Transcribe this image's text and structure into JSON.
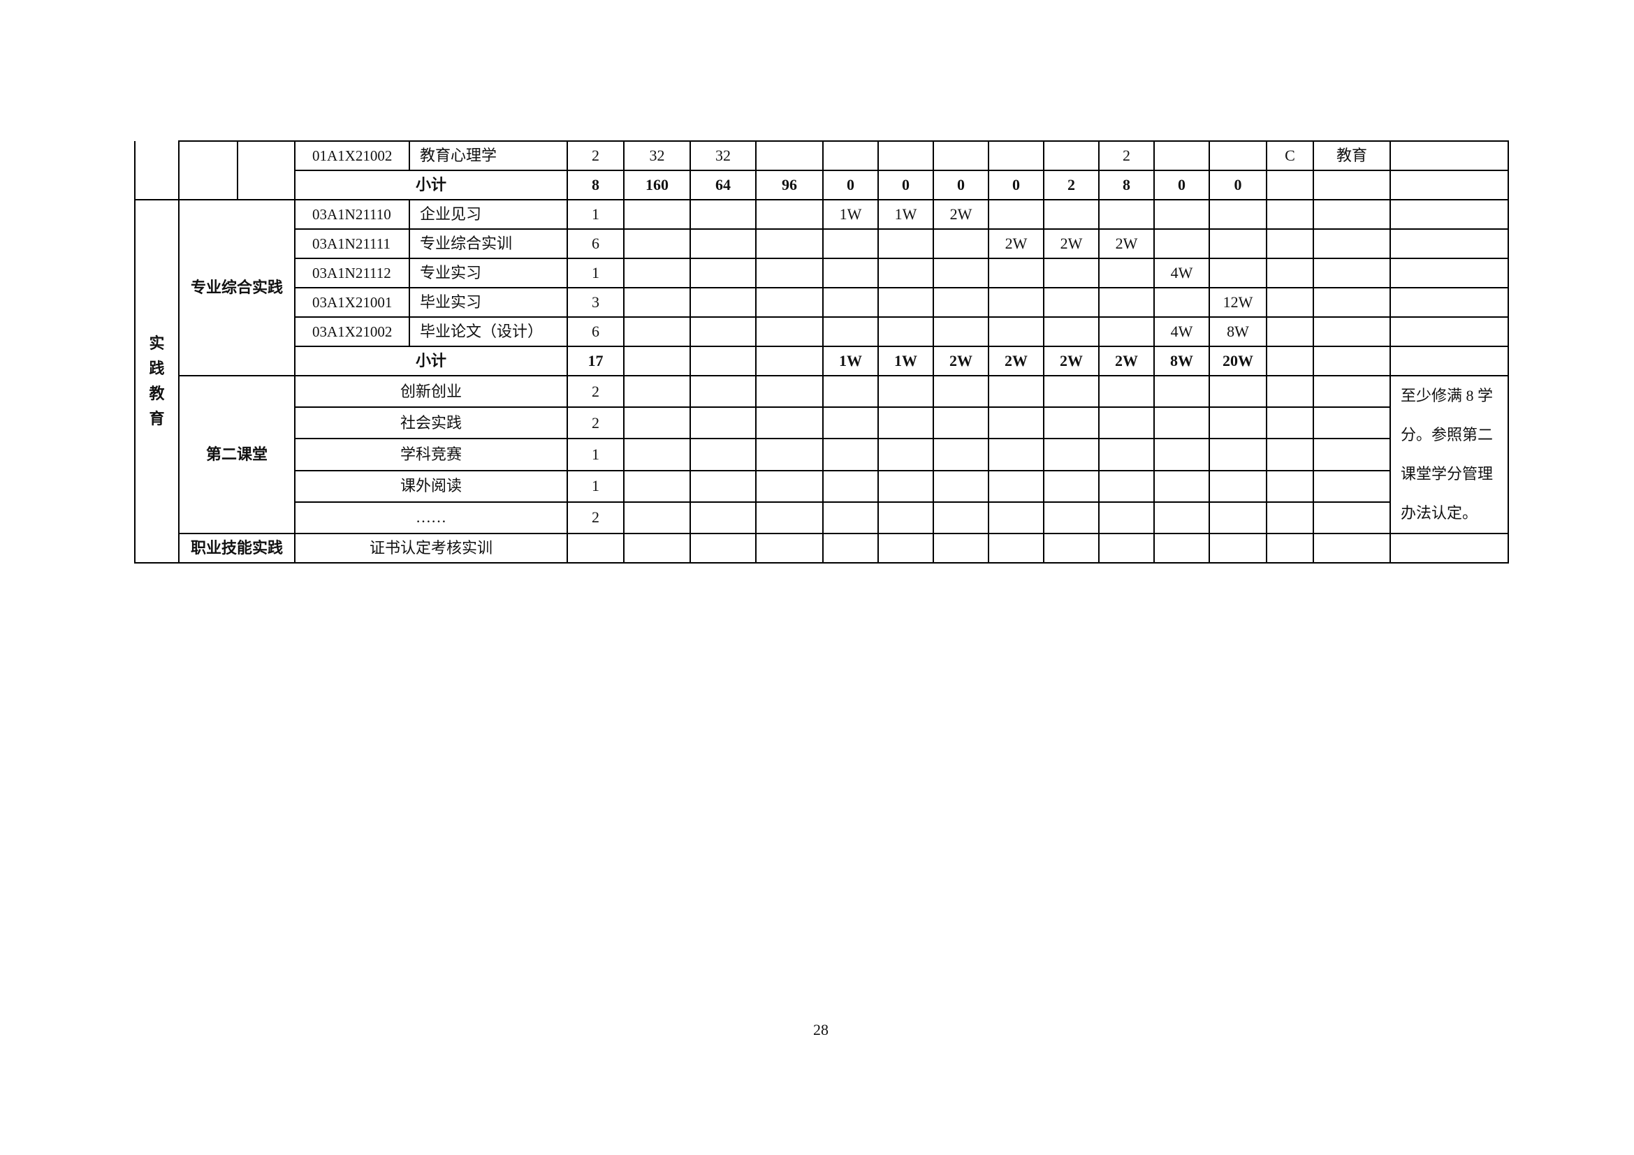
{
  "top_section": {
    "course": {
      "code": "01A1X21002",
      "name": "教育心理学",
      "credits": "2",
      "total_hours": "32",
      "theory_hours": "32",
      "practice_hours": "",
      "semesters": [
        "",
        "",
        "",
        "",
        "",
        "2",
        "",
        ""
      ],
      "assessment": "C",
      "department": "教育",
      "remarks": ""
    },
    "subtotal": {
      "label": "小计",
      "credits": "8",
      "total_hours": "160",
      "theory_hours": "64",
      "practice_hours": "96",
      "semesters": [
        "0",
        "0",
        "0",
        "0",
        "2",
        "8",
        "0",
        "0"
      ]
    }
  },
  "practice_education": {
    "label": "实践教育",
    "professional": {
      "label": "专业综合实践",
      "courses": [
        {
          "code": "03A1N21110",
          "name": "企业见习",
          "credits": "1",
          "semesters": [
            "1W",
            "1W",
            "2W",
            "",
            "",
            "",
            "",
            ""
          ]
        },
        {
          "code": "03A1N21111",
          "name": "专业综合实训",
          "credits": "6",
          "semesters": [
            "",
            "",
            "",
            "2W",
            "2W",
            "2W",
            "",
            ""
          ]
        },
        {
          "code": "03A1N21112",
          "name": "专业实习",
          "credits": "1",
          "semesters": [
            "",
            "",
            "",
            "",
            "",
            "",
            "4W",
            ""
          ]
        },
        {
          "code": "03A1X21001",
          "name": "毕业实习",
          "credits": "3",
          "semesters": [
            "",
            "",
            "",
            "",
            "",
            "",
            "",
            "12W"
          ]
        },
        {
          "code": "03A1X21002",
          "name": "毕业论文（设计）",
          "credits": "6",
          "semesters": [
            "",
            "",
            "",
            "",
            "",
            "",
            "4W",
            "8W"
          ]
        }
      ],
      "subtotal": {
        "label": "小计",
        "credits": "17",
        "semesters": [
          "1W",
          "1W",
          "2W",
          "2W",
          "2W",
          "2W",
          "8W",
          "20W"
        ]
      }
    },
    "second_classroom": {
      "label": "第二课堂",
      "items": [
        {
          "name": "创新创业",
          "credits": "2"
        },
        {
          "name": "社会实践",
          "credits": "2"
        },
        {
          "name": "学科竞赛",
          "credits": "1"
        },
        {
          "name": "课外阅读",
          "credits": "1"
        },
        {
          "name": "……",
          "credits": "2"
        }
      ],
      "remark": "至少修满 8 学分。参照第二课堂学分管理办法认定。"
    },
    "vocational": {
      "label": "职业技能实践",
      "item": "证书认定考核实训"
    }
  },
  "page_number": "28"
}
